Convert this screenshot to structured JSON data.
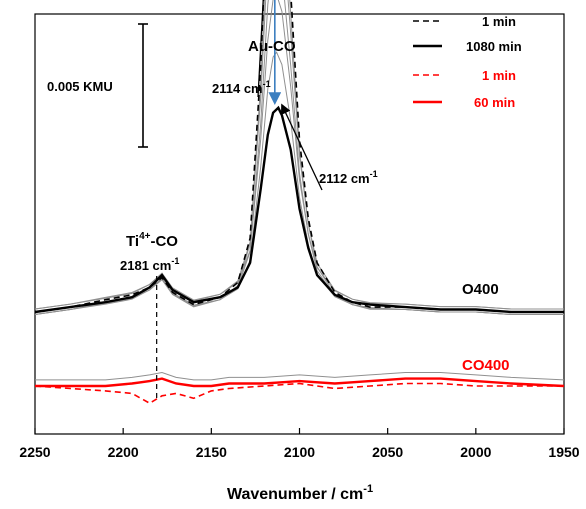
{
  "chart_data": {
    "type": "line",
    "title": "",
    "xlabel": "Wavenumber / cm",
    "xlabel_superscript": "-1",
    "ylabel": "",
    "xlim": [
      2250,
      1950
    ],
    "x_reversed": true,
    "xticks": [
      2250,
      2200,
      2150,
      2100,
      2050,
      2000,
      1950
    ],
    "y_units": "KMU (offset stacked spectra)",
    "scale_bar": {
      "label": "0.005 KMU",
      "value": 0.005
    },
    "colors": {
      "O400": "#000000",
      "CO400": "#ff0000",
      "intermediate": "#909090",
      "arrow": "#3c7fc0"
    },
    "legend": {
      "position": "top-right",
      "entries": [
        {
          "label": "1 min",
          "color": "#000000",
          "style": "dashed"
        },
        {
          "label": "1080 min",
          "color": "#000000",
          "style": "solid"
        },
        {
          "label": "1 min",
          "color": "#ff0000",
          "style": "dashed"
        },
        {
          "label": "60 min",
          "color": "#ff0000",
          "style": "solid"
        }
      ]
    },
    "annotations": {
      "au_co": "Au-CO",
      "peak1": "2114 cm",
      "peak1_sup": "-1",
      "peak2": "2112 cm",
      "peak2_sup": "-1",
      "ti_pre": "Ti",
      "ti_sup": "4+",
      "ti_post": "-CO",
      "ti_wn": "2181 cm",
      "ti_wn_sup": "-1",
      "o400": "O400",
      "co400": "CO400"
    },
    "series": [
      {
        "name": "1 min",
        "group": "O400",
        "style": "dashed",
        "color": "#000000",
        "x": [
          2250,
          2230,
          2210,
          2195,
          2185,
          2178,
          2172,
          2160,
          2145,
          2135,
          2128,
          2122,
          2118,
          2115,
          2113,
          2110,
          2105,
          2100,
          2095,
          2090,
          2080,
          2070,
          2060,
          2040,
          2020,
          2000,
          1980,
          1950
        ],
        "y": [
          0.0,
          0.0002,
          0.0005,
          0.0007,
          0.001,
          0.0014,
          0.0008,
          0.0003,
          0.0006,
          0.0012,
          0.003,
          0.01,
          0.017,
          0.0199,
          0.0201,
          0.0188,
          0.013,
          0.007,
          0.0038,
          0.002,
          0.0008,
          0.0004,
          0.0002,
          0.0002,
          0.0001,
          0.0001,
          0.0,
          0.0
        ]
      },
      {
        "name": "1080 min",
        "group": "O400",
        "style": "solid",
        "color": "#000000",
        "x": [
          2250,
          2230,
          2210,
          2195,
          2185,
          2178,
          2172,
          2160,
          2145,
          2135,
          2128,
          2122,
          2118,
          2115,
          2112,
          2110,
          2105,
          2100,
          2095,
          2090,
          2080,
          2070,
          2060,
          2040,
          2020,
          2000,
          1980,
          1950
        ],
        "y": [
          0.0,
          0.0002,
          0.0004,
          0.0006,
          0.001,
          0.0015,
          0.0009,
          0.0004,
          0.0006,
          0.001,
          0.002,
          0.005,
          0.0072,
          0.0081,
          0.0083,
          0.008,
          0.0066,
          0.0042,
          0.0026,
          0.0015,
          0.0007,
          0.0004,
          0.0003,
          0.0002,
          0.0001,
          0.0001,
          0.0,
          0.0
        ]
      },
      {
        "name": "1 min",
        "group": "CO400",
        "style": "dashed",
        "color": "#ff0000",
        "x": [
          2250,
          2230,
          2210,
          2195,
          2185,
          2178,
          2170,
          2160,
          2150,
          2140,
          2120,
          2100,
          2080,
          2060,
          2040,
          2020,
          2000,
          1980,
          1950
        ],
        "y": [
          0.0,
          -0.0001,
          -0.0002,
          -0.0003,
          -0.0007,
          -0.0004,
          -0.0003,
          -0.0005,
          -0.0002,
          -0.0001,
          0.0,
          0.0001,
          -0.0001,
          0.0,
          0.0001,
          0.0001,
          0.0,
          0.0,
          0.0
        ]
      },
      {
        "name": "60 min",
        "group": "CO400",
        "style": "solid",
        "color": "#ff0000",
        "x": [
          2250,
          2230,
          2210,
          2195,
          2185,
          2178,
          2170,
          2160,
          2150,
          2140,
          2120,
          2100,
          2080,
          2060,
          2040,
          2020,
          2000,
          1980,
          1950
        ],
        "y": [
          0.0,
          0.0,
          0.0,
          0.0001,
          0.0002,
          0.0003,
          0.0001,
          0.0,
          0.0,
          0.0001,
          0.0001,
          0.0002,
          0.0001,
          0.0002,
          0.0003,
          0.0003,
          0.0002,
          0.0001,
          0.0
        ]
      }
    ]
  }
}
